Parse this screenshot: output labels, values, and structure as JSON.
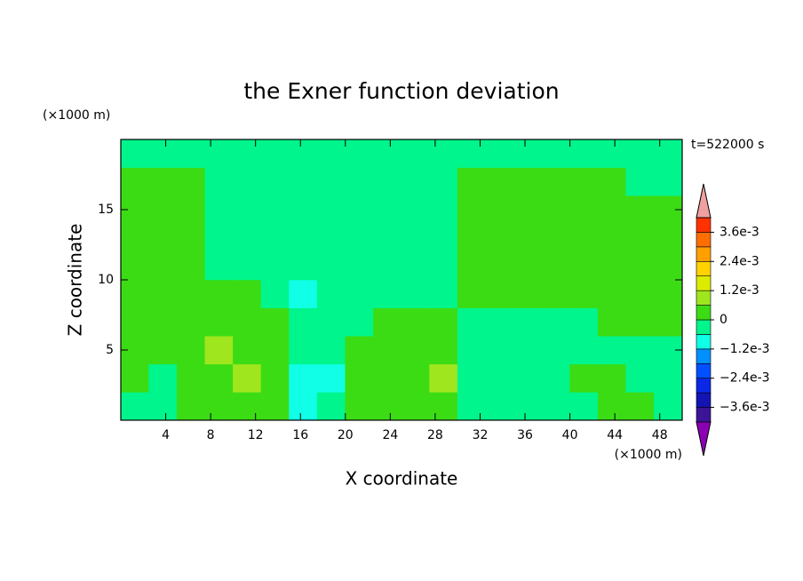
{
  "chart_data": {
    "type": "contour",
    "title": "the Exner function deviation",
    "x_label": "X coordinate",
    "y_label": "Z coordinate",
    "x_unit": "(×1000 m)",
    "y_unit": "(×1000 m)",
    "time_label": "t=522000 s",
    "xlim": [
      0,
      50
    ],
    "ylim": [
      0,
      20
    ],
    "xticks": [
      4,
      8,
      12,
      16,
      20,
      24,
      28,
      32,
      36,
      40,
      44,
      48
    ],
    "yticks": [
      5,
      10,
      15
    ],
    "x": [
      1.25,
      3.75,
      6.25,
      8.75,
      11.25,
      13.75,
      16.25,
      18.75,
      21.25,
      23.75,
      26.25,
      28.75,
      31.25,
      33.75,
      36.25,
      38.75,
      41.25,
      43.75,
      46.25,
      48.75
    ],
    "y": [
      1,
      3,
      5,
      7,
      9,
      11,
      13,
      15,
      17,
      19
    ],
    "z": [
      [
        -0.0003,
        -0.0003,
        0.0003,
        0.0003,
        0.0003,
        0.0003,
        -0.0009,
        -0.0003,
        0.0003,
        0.0003,
        0.0003,
        0.0003,
        -0.0003,
        -0.0003,
        -0.0003,
        -0.0003,
        -0.0003,
        0.0003,
        0.0003,
        -0.0003
      ],
      [
        0.0003,
        -0.0003,
        0.0003,
        0.0003,
        0.0009,
        0.0003,
        -0.0009,
        -0.0009,
        0.0003,
        0.0003,
        0.0003,
        0.0009,
        -0.0003,
        -0.0003,
        -0.0003,
        -0.0003,
        0.0003,
        0.0003,
        -0.0003,
        -0.0003
      ],
      [
        0.0003,
        0.0003,
        0.0003,
        0.0009,
        0.0003,
        0.0003,
        -0.0003,
        -0.0003,
        0.0003,
        0.0003,
        0.0003,
        0.0003,
        -0.0003,
        -0.0003,
        -0.0003,
        -0.0003,
        -0.0003,
        -0.0003,
        -0.0003,
        -0.0003
      ],
      [
        0.0003,
        0.0003,
        0.0003,
        0.0003,
        0.0003,
        0.0003,
        -0.0003,
        -0.0003,
        -0.0003,
        0.0003,
        0.0003,
        0.0003,
        -0.0003,
        -0.0003,
        -0.0003,
        -0.0003,
        -0.0003,
        0.0003,
        0.0003,
        0.0003
      ],
      [
        0.0003,
        0.0003,
        0.0003,
        0.0003,
        0.0003,
        -0.0003,
        -0.0009,
        -0.0003,
        -0.0003,
        -0.0003,
        -0.0003,
        -0.0003,
        0.0003,
        0.0003,
        0.0003,
        0.0003,
        0.0003,
        0.0003,
        0.0003,
        0.0003
      ],
      [
        0.0003,
        0.0003,
        0.0003,
        -0.0003,
        -0.0003,
        -0.0003,
        -0.0003,
        -0.0003,
        -0.0003,
        -0.0003,
        -0.0003,
        -0.0003,
        0.0003,
        0.0003,
        0.0003,
        0.0003,
        0.0003,
        0.0003,
        0.0003,
        0.0003
      ],
      [
        0.0003,
        0.0003,
        0.0003,
        -0.0003,
        -0.0003,
        -0.0003,
        -0.0003,
        -0.0003,
        -0.0003,
        -0.0003,
        -0.0003,
        -0.0003,
        0.0003,
        0.0003,
        0.0003,
        0.0003,
        0.0003,
        0.0003,
        0.0003,
        0.0003
      ],
      [
        0.0003,
        0.0003,
        0.0003,
        -0.0003,
        -0.0003,
        -0.0003,
        -0.0003,
        -0.0003,
        -0.0003,
        -0.0003,
        -0.0003,
        -0.0003,
        0.0003,
        0.0003,
        0.0003,
        0.0003,
        0.0003,
        0.0003,
        0.0003,
        0.0003
      ],
      [
        0.0003,
        0.0003,
        0.0003,
        -0.0003,
        -0.0003,
        -0.0003,
        -0.0003,
        -0.0003,
        -0.0003,
        -0.0003,
        -0.0003,
        -0.0003,
        0.0003,
        0.0003,
        0.0003,
        0.0003,
        0.0003,
        0.0003,
        -0.0003,
        -0.0003
      ],
      [
        -0.0003,
        -0.0003,
        -0.0003,
        -0.0003,
        -0.0003,
        -0.0003,
        -0.0003,
        -0.0003,
        -0.0003,
        -0.0003,
        -0.0003,
        -0.0003,
        -0.0003,
        -0.0003,
        -0.0003,
        -0.0003,
        -0.0003,
        -0.0003,
        -0.0003,
        -0.0003
      ]
    ],
    "colorbar": {
      "levels": [
        -0.0042,
        -0.0036,
        -0.003,
        -0.0024,
        -0.0018,
        -0.0012,
        -0.0006,
        0,
        0.0006,
        0.0012,
        0.0018,
        0.0024,
        0.003,
        0.0036,
        0.0042
      ],
      "colors": [
        "#8c00b4",
        "#3c1496",
        "#1414b4",
        "#0a28e6",
        "#0050ff",
        "#0090ff",
        "#10ffe6",
        "#00f58c",
        "#3cdc14",
        "#a0e61e",
        "#dcec00",
        "#ffd200",
        "#ffa000",
        "#ff6e00",
        "#ff3200",
        "#f0a0a0"
      ],
      "ticks": [
        {
          "value": 0.0036,
          "label": "3.6e-3"
        },
        {
          "value": 0.0024,
          "label": "2.4e-3"
        },
        {
          "value": 0.0012,
          "label": "1.2e-3"
        },
        0,
        {
          "value": -0.0012,
          "label": "−1.2e-3"
        },
        {
          "value": -0.0024,
          "label": "−2.4e-3"
        },
        {
          "value": -0.0036,
          "label": "−3.6e-3"
        }
      ]
    }
  }
}
